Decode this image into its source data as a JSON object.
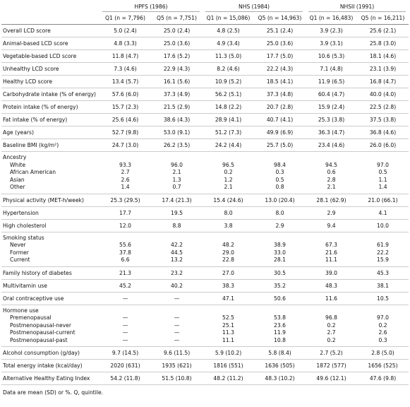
{
  "table": {
    "groups": [
      "HPFS (1986)",
      "NHS (1984)",
      "NHSII (1991)"
    ],
    "columns": [
      "Q1 (n = 7,796)",
      "Q5 (n = 7,751)",
      "Q1 (n = 15,086)",
      "Q5 (n = 14,963)",
      "Q1 (n = 16,483)",
      "Q5 (n = 16,211)"
    ],
    "rows": [
      {
        "label": "Overall LCD score",
        "values": [
          "5.0 (2.4)",
          "25.0 (2.4)",
          "4.8 (2.5)",
          "25.1 (2.4)",
          "3.9 (2.3)",
          "25.6 (2.1)"
        ]
      },
      {
        "label": "Animal-based LCD score",
        "values": [
          "4.8 (3.3)",
          "25.0 (3.6)",
          "4.9 (3.4)",
          "25.0 (3.6)",
          "3.9 (3.1)",
          "25.8 (3.0)"
        ]
      },
      {
        "label": "Vegetable-based LCD score",
        "values": [
          "11.8 (4.7)",
          "17.6 (5.2)",
          "11.3 (5.0)",
          "17.7 (5.0)",
          "10.6 (5.3)",
          "18.1 (4.6)"
        ]
      },
      {
        "label": "Unhealthy LCD score",
        "values": [
          "7.3 (4.6)",
          "22.9 (4.3)",
          "8.2 (4.6)",
          "22.2 (4.3)",
          "7.1 (4.8)",
          "23.1 (3.9)"
        ]
      },
      {
        "label": "Healthy LCD score",
        "values": [
          "13.4 (5.7)",
          "16.1 (5.6)",
          "10.9 (5.2)",
          "18.5 (4.1)",
          "11.9 (6.5)",
          "16.8 (4.7)"
        ]
      },
      {
        "label": "Carbohydrate intake (% of energy)",
        "values": [
          "57.6 (6.0)",
          "37.3 (4.9)",
          "56.2 (5.1)",
          "37.3 (4.8)",
          "60.4 (4.7)",
          "40.0 (4.0)"
        ]
      },
      {
        "label": "Protein intake (% of energy)",
        "values": [
          "15.7 (2.3)",
          "21.5 (2.9)",
          "14.8 (2.2)",
          "20.7 (2.8)",
          "15.9 (2.4)",
          "22.5 (2.8)"
        ]
      },
      {
        "label": "Fat intake (% of energy)",
        "values": [
          "25.6 (4.6)",
          "38.6 (4.3)",
          "28.9 (4.1)",
          "40.7 (4.1)",
          "25.3 (3.8)",
          "37.5 (3.8)"
        ]
      },
      {
        "label": "Age (years)",
        "values": [
          "52.7 (9.8)",
          "53.0 (9.1)",
          "51.2 (7.3)",
          "49.9 (6.9)",
          "36.3 (4.7)",
          "36.8 (4.6)"
        ]
      },
      {
        "label": "Baseline BMI (kg/m²)",
        "values": [
          "24.7 (3.0)",
          "26.2 (3.5)",
          "24.2 (4.4)",
          "25.7 (5.0)",
          "23.4 (4.6)",
          "26.0 (6.0)"
        ]
      },
      {
        "label": "Ancestry",
        "subrows": [
          {
            "label": "White",
            "values": [
              "93.3",
              "96.0",
              "96.5",
              "98.4",
              "94.5",
              "97.0"
            ]
          },
          {
            "label": "African American",
            "values": [
              "2.7",
              "2.1",
              "0.2",
              "0.3",
              "0.6",
              "0.5"
            ]
          },
          {
            "label": "Asian",
            "values": [
              "2.6",
              "1.3",
              "1.2",
              "0.5",
              "2.8",
              "1.1"
            ]
          },
          {
            "label": "Other",
            "values": [
              "1.4",
              "0.7",
              "2.1",
              "0.8",
              "2.1",
              "1.4"
            ]
          }
        ]
      },
      {
        "label": "Physical activity (MET-h/week)",
        "values": [
          "25.3 (29.5)",
          "17.4 (21.3)",
          "15.4 (24.6)",
          "13.0 (20.4)",
          "28.1 (62.9)",
          "21.0 (66.1)"
        ]
      },
      {
        "label": "Hypertension",
        "values": [
          "17.7",
          "19.5",
          "8.0",
          "8.0",
          "2.9",
          "4.1"
        ]
      },
      {
        "label": "High cholesterol",
        "values": [
          "12.0",
          "8.8",
          "3.8",
          "2.9",
          "9.4",
          "10.0"
        ]
      },
      {
        "label": "Smoking status",
        "subrows": [
          {
            "label": "Never",
            "values": [
              "55.6",
              "42.2",
              "48.2",
              "38.9",
              "67.3",
              "61.9"
            ]
          },
          {
            "label": "Former",
            "values": [
              "37.8",
              "44.5",
              "29.0",
              "33.0",
              "21.6",
              "22.2"
            ]
          },
          {
            "label": "Current",
            "values": [
              "6.6",
              "13.2",
              "22.8",
              "28.1",
              "11.1",
              "15.9"
            ]
          }
        ]
      },
      {
        "label": "Family history of diabetes",
        "values": [
          "21.3",
          "23.2",
          "27.0",
          "30.5",
          "39.0",
          "45.3"
        ]
      },
      {
        "label": "Multivitamin use",
        "values": [
          "45.2",
          "40.2",
          "38.3",
          "35.2",
          "48.3",
          "38.1"
        ]
      },
      {
        "label": "Oral contraceptive use",
        "values": [
          "—",
          "—",
          "47.1",
          "50.6",
          "11.6",
          "10.5"
        ]
      },
      {
        "label": "Hormone use",
        "subrows": [
          {
            "label": "Premenopausal",
            "values": [
              "—",
              "—",
              "52.5",
              "53.8",
              "96.8",
              "97.0"
            ]
          },
          {
            "label": "Postmenopausal-never",
            "values": [
              "—",
              "—",
              "25.1",
              "23.6",
              "0.2",
              "0.2"
            ]
          },
          {
            "label": "Postmenopausal-current",
            "values": [
              "—",
              "—",
              "11.3",
              "11.9",
              "2.7",
              "2.6"
            ]
          },
          {
            "label": "Postmenopausal-past",
            "values": [
              "—",
              "—",
              "11.1",
              "10.8",
              "0.2",
              "0.3"
            ]
          }
        ]
      },
      {
        "label": "Alcohol consumption (g/day)",
        "values": [
          "9.7 (14.5)",
          "9.6 (11.5)",
          "5.9 (10.2)",
          "5.8 (8.4)",
          "2.7 (5.2)",
          "2.8 (5.0)"
        ]
      },
      {
        "label": "Total energy intake (kcal/day)",
        "values": [
          "2020 (631)",
          "1935 (621)",
          "1816 (551)",
          "1636 (505)",
          "1872 (577)",
          "1656 (525)"
        ]
      },
      {
        "label": "Alternative Healthy Eating Index",
        "values": [
          "54.2 (11.8)",
          "51.5 (10.8)",
          "48.2 (11.2)",
          "48.3 (10.2)",
          "49.6 (12.1)",
          "47.6 (9.8)"
        ]
      }
    ]
  },
  "footer": "Data are mean (SD) or %. Q, quintile."
}
